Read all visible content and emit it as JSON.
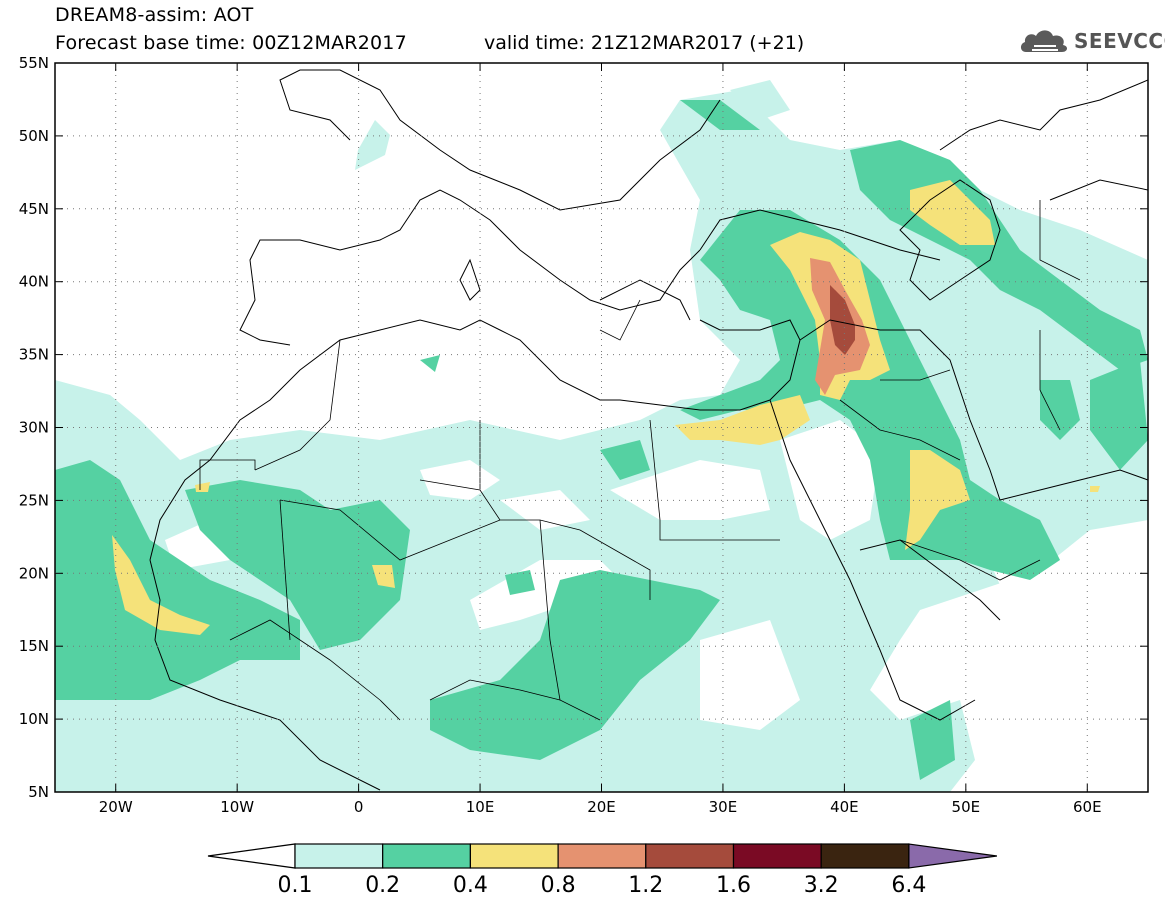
{
  "header": {
    "title": "DREAM8-assim: AOT",
    "base_time": "Forecast base time: 00Z12MAR2017",
    "valid_time": "valid time: 21Z12MAR2017 (+21)"
  },
  "logo": {
    "text": "SEEVCCC",
    "icon": "cloud-icon"
  },
  "map": {
    "projection": "lat-lon",
    "lon_range": [
      -25,
      65
    ],
    "lat_range": [
      5,
      55
    ],
    "lat_labels": [
      "55N",
      "50N",
      "45N",
      "40N",
      "35N",
      "30N",
      "25N",
      "20N",
      "15N",
      "10N",
      "5N"
    ],
    "lon_labels": [
      "20W",
      "10W",
      "0",
      "10E",
      "20E",
      "30E",
      "40E",
      "50E",
      "60E"
    ]
  },
  "colorbar": {
    "labels": [
      "0.1",
      "0.2",
      "0.4",
      "0.8",
      "1.2",
      "1.6",
      "3.2",
      "6.4"
    ],
    "colors": [
      "#ffffff",
      "#c7f2ea",
      "#55d1a2",
      "#f5e27a",
      "#e59270",
      "#a54b3c",
      "#7a0a24",
      "#3a2410",
      "#8a6aaa"
    ]
  }
}
